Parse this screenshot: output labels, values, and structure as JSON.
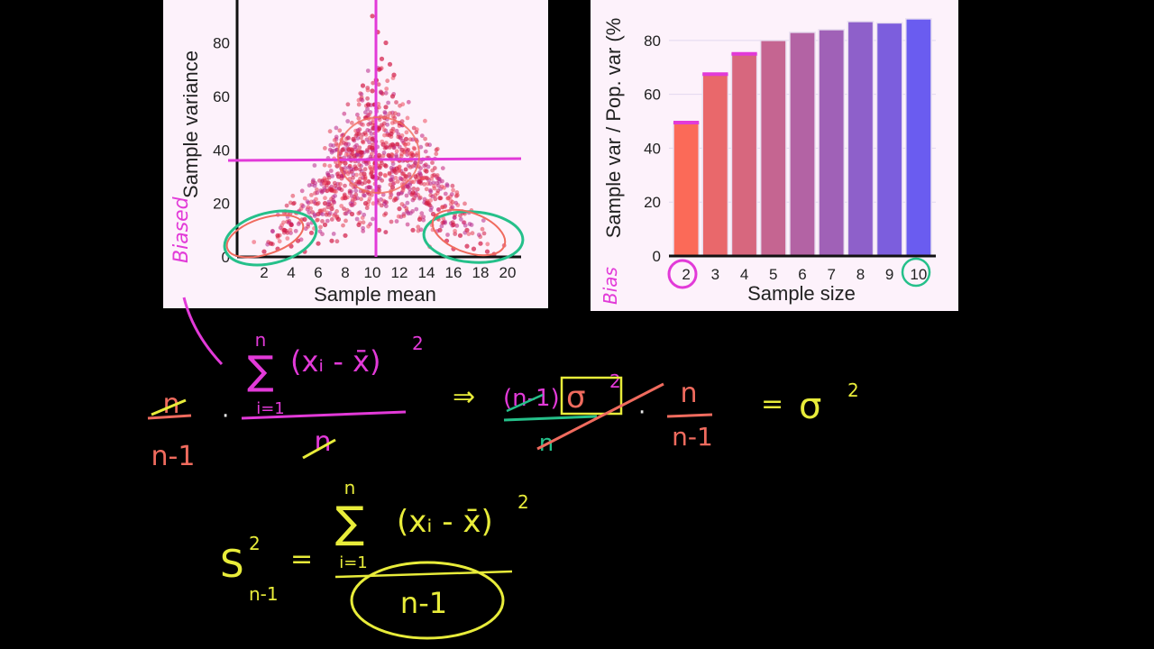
{
  "colors": {
    "background": "#000000",
    "panel": "#fdf2fb",
    "magenta": "#e23ad8",
    "salmon": "#f06b5e",
    "yellow": "#e8ec3a",
    "green": "#25c08a",
    "scatter_point": "#d21a44",
    "bar_start": "#fb6a58",
    "bar_end": "#6a5cf0"
  },
  "chart_data": [
    {
      "type": "scatter",
      "xlabel": "Sample mean",
      "ylabel": "Sample variance",
      "xlim": [
        0,
        21
      ],
      "ylim": [
        0,
        96
      ],
      "x_ticks": [
        "2",
        "4",
        "6",
        "8",
        "10",
        "12",
        "14",
        "16",
        "18",
        "20"
      ],
      "x_tick_values": [
        2,
        4,
        6,
        8,
        10,
        12,
        14,
        16,
        18,
        20
      ],
      "y_ticks": [
        "0",
        "20",
        "40",
        "60",
        "80"
      ],
      "y_tick_values": [
        0,
        20,
        40,
        60,
        80
      ],
      "annotation": "Biased",
      "reference_lines": {
        "population_mean": 10.5,
        "population_variance": 37
      },
      "cluster": {
        "center_x": 10.5,
        "center_y": 37,
        "description": "many hundreds of semi-transparent points forming a triangular cloud"
      },
      "points": [
        [
          2,
          2
        ],
        [
          2.5,
          5
        ],
        [
          3,
          3
        ],
        [
          3,
          8
        ],
        [
          3.5,
          10
        ],
        [
          4,
          4
        ],
        [
          4,
          12
        ],
        [
          4.5,
          6
        ],
        [
          5,
          2
        ],
        [
          5,
          14
        ],
        [
          5.5,
          9
        ],
        [
          6,
          5
        ],
        [
          6,
          16
        ],
        [
          6.5,
          12
        ],
        [
          6.5,
          20
        ],
        [
          7,
          6
        ],
        [
          7,
          18
        ],
        [
          7,
          25
        ],
        [
          7.5,
          14
        ],
        [
          7.5,
          30
        ],
        [
          8,
          8
        ],
        [
          8,
          22
        ],
        [
          8,
          35
        ],
        [
          8.5,
          16
        ],
        [
          8.5,
          40
        ],
        [
          9,
          28
        ],
        [
          9,
          46
        ],
        [
          9,
          12
        ],
        [
          9.5,
          36
        ],
        [
          9.5,
          52
        ],
        [
          9.5,
          20
        ],
        [
          10,
          30
        ],
        [
          10,
          44
        ],
        [
          10,
          62
        ],
        [
          10,
          90
        ],
        [
          10.5,
          38
        ],
        [
          10.5,
          70
        ],
        [
          10.5,
          48
        ],
        [
          10.5,
          10
        ],
        [
          11,
          34
        ],
        [
          11,
          56
        ],
        [
          11,
          80
        ],
        [
          11.5,
          42
        ],
        [
          11.5,
          26
        ],
        [
          11.5,
          60
        ],
        [
          12,
          36
        ],
        [
          12,
          50
        ],
        [
          12,
          18
        ],
        [
          12.5,
          30
        ],
        [
          12.5,
          44
        ],
        [
          13,
          24
        ],
        [
          13,
          38
        ],
        [
          13,
          10
        ],
        [
          13.5,
          28
        ],
        [
          13.5,
          14
        ],
        [
          14,
          20
        ],
        [
          14,
          32
        ],
        [
          14.5,
          16
        ],
        [
          15,
          10
        ],
        [
          15,
          22
        ],
        [
          15.5,
          6
        ],
        [
          16,
          12
        ],
        [
          16,
          3
        ],
        [
          16.5,
          8
        ],
        [
          17,
          4
        ],
        [
          17,
          10
        ],
        [
          17.5,
          3
        ],
        [
          18,
          5
        ],
        [
          18.5,
          2
        ],
        [
          19,
          1
        ],
        [
          8.8,
          33
        ],
        [
          9.2,
          39
        ],
        [
          9.8,
          41
        ],
        [
          10.2,
          35
        ],
        [
          10.8,
          42
        ],
        [
          11.2,
          38
        ],
        [
          11.8,
          33
        ],
        [
          12.2,
          40
        ],
        [
          9.4,
          31
        ],
        [
          10.6,
          31
        ],
        [
          10.1,
          48
        ],
        [
          10.9,
          52
        ],
        [
          9.7,
          57
        ],
        [
          11.4,
          46
        ],
        [
          8.6,
          44
        ],
        [
          12.6,
          36
        ],
        [
          7.8,
          40
        ],
        [
          13.2,
          30
        ],
        [
          7.4,
          34
        ],
        [
          10.3,
          66
        ],
        [
          10.7,
          74
        ],
        [
          9.3,
          64
        ],
        [
          11.6,
          68
        ],
        [
          10.4,
          84
        ],
        [
          11.3,
          72
        ]
      ]
    },
    {
      "type": "bar",
      "xlabel": "Sample size",
      "ylabel": "Sample var / Pop. var (%",
      "annotation": "Bias",
      "categories": [
        "2",
        "3",
        "4",
        "5",
        "6",
        "7",
        "8",
        "9",
        "10"
      ],
      "values": [
        49.5,
        67.5,
        75,
        80,
        83,
        84,
        87,
        86.5,
        88
      ],
      "ylim": [
        0,
        95
      ],
      "y_ticks": [
        "0",
        "20",
        "40",
        "60",
        "80"
      ],
      "y_tick_values": [
        0,
        20,
        40,
        60,
        80
      ],
      "highlighted_categories": [
        "2",
        "10"
      ]
    }
  ],
  "handwriting": {
    "left_fraction": {
      "num": "n",
      "den": "n-1"
    },
    "dot": "·",
    "sum": {
      "top": "n",
      "symbol": "∑",
      "bottom": "i=1",
      "term": "(xᵢ - x̄)",
      "exp": "2"
    },
    "sum_den": "n",
    "arrow": "⇒",
    "middle": {
      "num_paren": "(n-1)",
      "sigma": "σ",
      "exp": "2",
      "den": "n"
    },
    "right_fraction": {
      "num": "n",
      "den": "n-1"
    },
    "equals": "=",
    "sigma_final": "σ",
    "sigma_final_exp": "2",
    "s_label": "S",
    "s_exp": "2",
    "s_sub": "n-1",
    "s_equals": "=",
    "s_sum": {
      "top": "n",
      "symbol": "∑",
      "bottom": "i=1",
      "term": "(xᵢ - x̄)",
      "exp": "2"
    },
    "s_den": "n-1"
  }
}
